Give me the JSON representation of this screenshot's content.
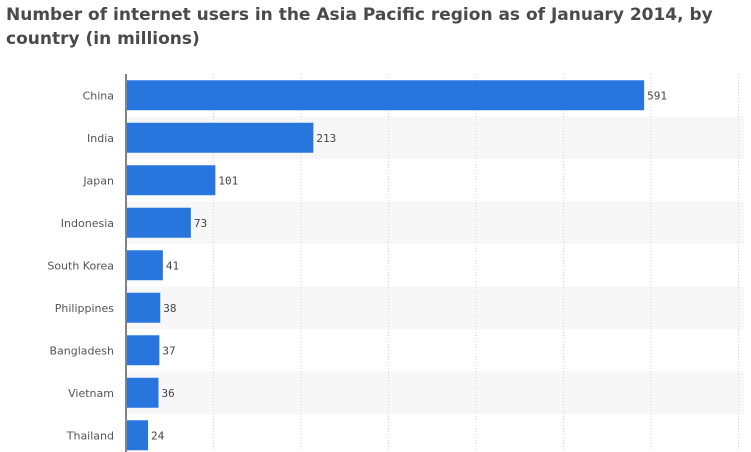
{
  "chart_data": {
    "type": "bar",
    "orientation": "horizontal",
    "title": "Number of internet users in the Asia Pacific region as of January 2014, by country (in millions)",
    "categories": [
      "China",
      "India",
      "Japan",
      "Indonesia",
      "South Korea",
      "Philippines",
      "Bangladesh",
      "Vietnam",
      "Thailand"
    ],
    "values": [
      591,
      213,
      101,
      73,
      41,
      38,
      37,
      36,
      24
    ],
    "xlim": [
      0,
      700
    ],
    "grid": true,
    "bar_color": "#2876dd",
    "alt_row_color": "#f7f7f7"
  }
}
